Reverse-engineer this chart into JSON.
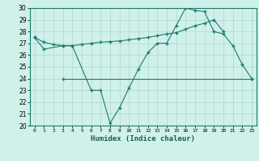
{
  "xlabel": "Humidex (Indice chaleur)",
  "series": {
    "line_zigzag": {
      "x": [
        0,
        1,
        3,
        4,
        6,
        7,
        8,
        9,
        10,
        11,
        12,
        13,
        14,
        15,
        16,
        17,
        18,
        19,
        20,
        21,
        22,
        23
      ],
      "y": [
        27.5,
        26.5,
        26.8,
        26.8,
        23.0,
        23.0,
        20.2,
        21.5,
        23.2,
        24.8,
        26.2,
        27.0,
        27.0,
        28.5,
        30.0,
        29.8,
        29.7,
        28.0,
        27.8,
        26.8,
        25.2,
        24.0
      ]
    },
    "line_flat": {
      "x": [
        3,
        23
      ],
      "y": [
        24.0,
        24.0
      ]
    },
    "line_smooth": {
      "x": [
        0,
        1,
        2,
        3,
        4,
        5,
        6,
        7,
        8,
        9,
        10,
        11,
        12,
        13,
        14,
        15,
        16,
        17,
        18,
        19,
        20
      ],
      "y": [
        27.5,
        27.1,
        26.9,
        26.8,
        26.8,
        26.9,
        27.0,
        27.1,
        27.15,
        27.2,
        27.3,
        27.4,
        27.5,
        27.65,
        27.8,
        27.9,
        28.2,
        28.5,
        28.7,
        29.0,
        28.0
      ]
    }
  },
  "color": "#1a7a6e",
  "bg_color": "#d0f0ea",
  "grid_color": "#aad8d0",
  "ylim": [
    20,
    30
  ],
  "yticks": [
    20,
    21,
    22,
    23,
    24,
    25,
    26,
    27,
    28,
    29,
    30
  ],
  "xticks": [
    0,
    1,
    2,
    3,
    4,
    5,
    6,
    7,
    8,
    9,
    10,
    11,
    12,
    13,
    14,
    15,
    16,
    17,
    18,
    19,
    20,
    21,
    22,
    23
  ]
}
